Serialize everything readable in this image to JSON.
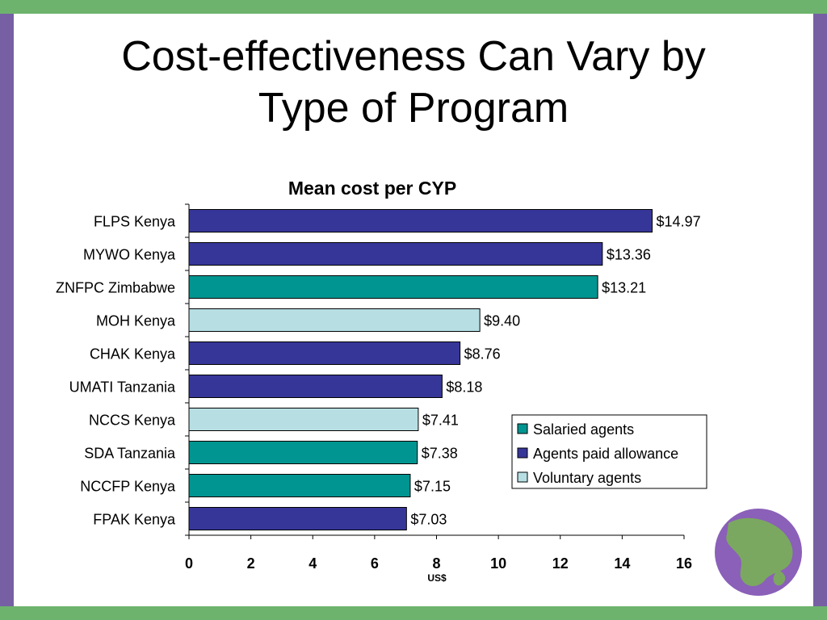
{
  "slide": {
    "title_line1": "Cost-effectiveness Can Vary by",
    "title_line2": "Type of Program"
  },
  "colors": {
    "top_band": "#6db36d",
    "side_band": "#7660a3",
    "logo_fill": "#8a60b8",
    "logo_shape": "#76c043",
    "salaried": "#009590",
    "allowance": "#363699",
    "voluntary": "#b7dfe3"
  },
  "logo": {
    "icon": "globe-icon"
  },
  "chart_data": {
    "type": "bar",
    "orientation": "horizontal",
    "title": "Mean cost per CYP",
    "xlabel": "US$",
    "ylabel": "",
    "xlim": [
      0,
      16
    ],
    "x_ticks": [
      "0",
      "2",
      "4",
      "6",
      "8",
      "10",
      "12",
      "14",
      "16"
    ],
    "grid": false,
    "legend_position": "lower-right",
    "legend": [
      {
        "key": "salaried",
        "label": "Salaried agents"
      },
      {
        "key": "allowance",
        "label": "Agents paid allowance"
      },
      {
        "key": "voluntary",
        "label": "Voluntary agents"
      }
    ],
    "bars": [
      {
        "label": "FLPS Kenya",
        "value": 14.97,
        "value_label": "$14.97",
        "group": "allowance"
      },
      {
        "label": "MYWO Kenya",
        "value": 13.36,
        "value_label": "$13.36",
        "group": "allowance"
      },
      {
        "label": "ZNFPC Zimbabwe",
        "value": 13.21,
        "value_label": "$13.21",
        "group": "salaried"
      },
      {
        "label": "MOH Kenya",
        "value": 9.4,
        "value_label": "$9.40",
        "group": "voluntary"
      },
      {
        "label": "CHAK Kenya",
        "value": 8.76,
        "value_label": "$8.76",
        "group": "allowance"
      },
      {
        "label": "UMATI Tanzania",
        "value": 8.18,
        "value_label": "$8.18",
        "group": "allowance"
      },
      {
        "label": "NCCS Kenya",
        "value": 7.41,
        "value_label": "$7.41",
        "group": "voluntary"
      },
      {
        "label": "SDA Tanzania",
        "value": 7.38,
        "value_label": "$7.38",
        "group": "salaried"
      },
      {
        "label": "NCCFP Kenya",
        "value": 7.15,
        "value_label": "$7.15",
        "group": "salaried"
      },
      {
        "label": "FPAK Kenya",
        "value": 7.03,
        "value_label": "$7.03",
        "group": "allowance"
      }
    ]
  }
}
